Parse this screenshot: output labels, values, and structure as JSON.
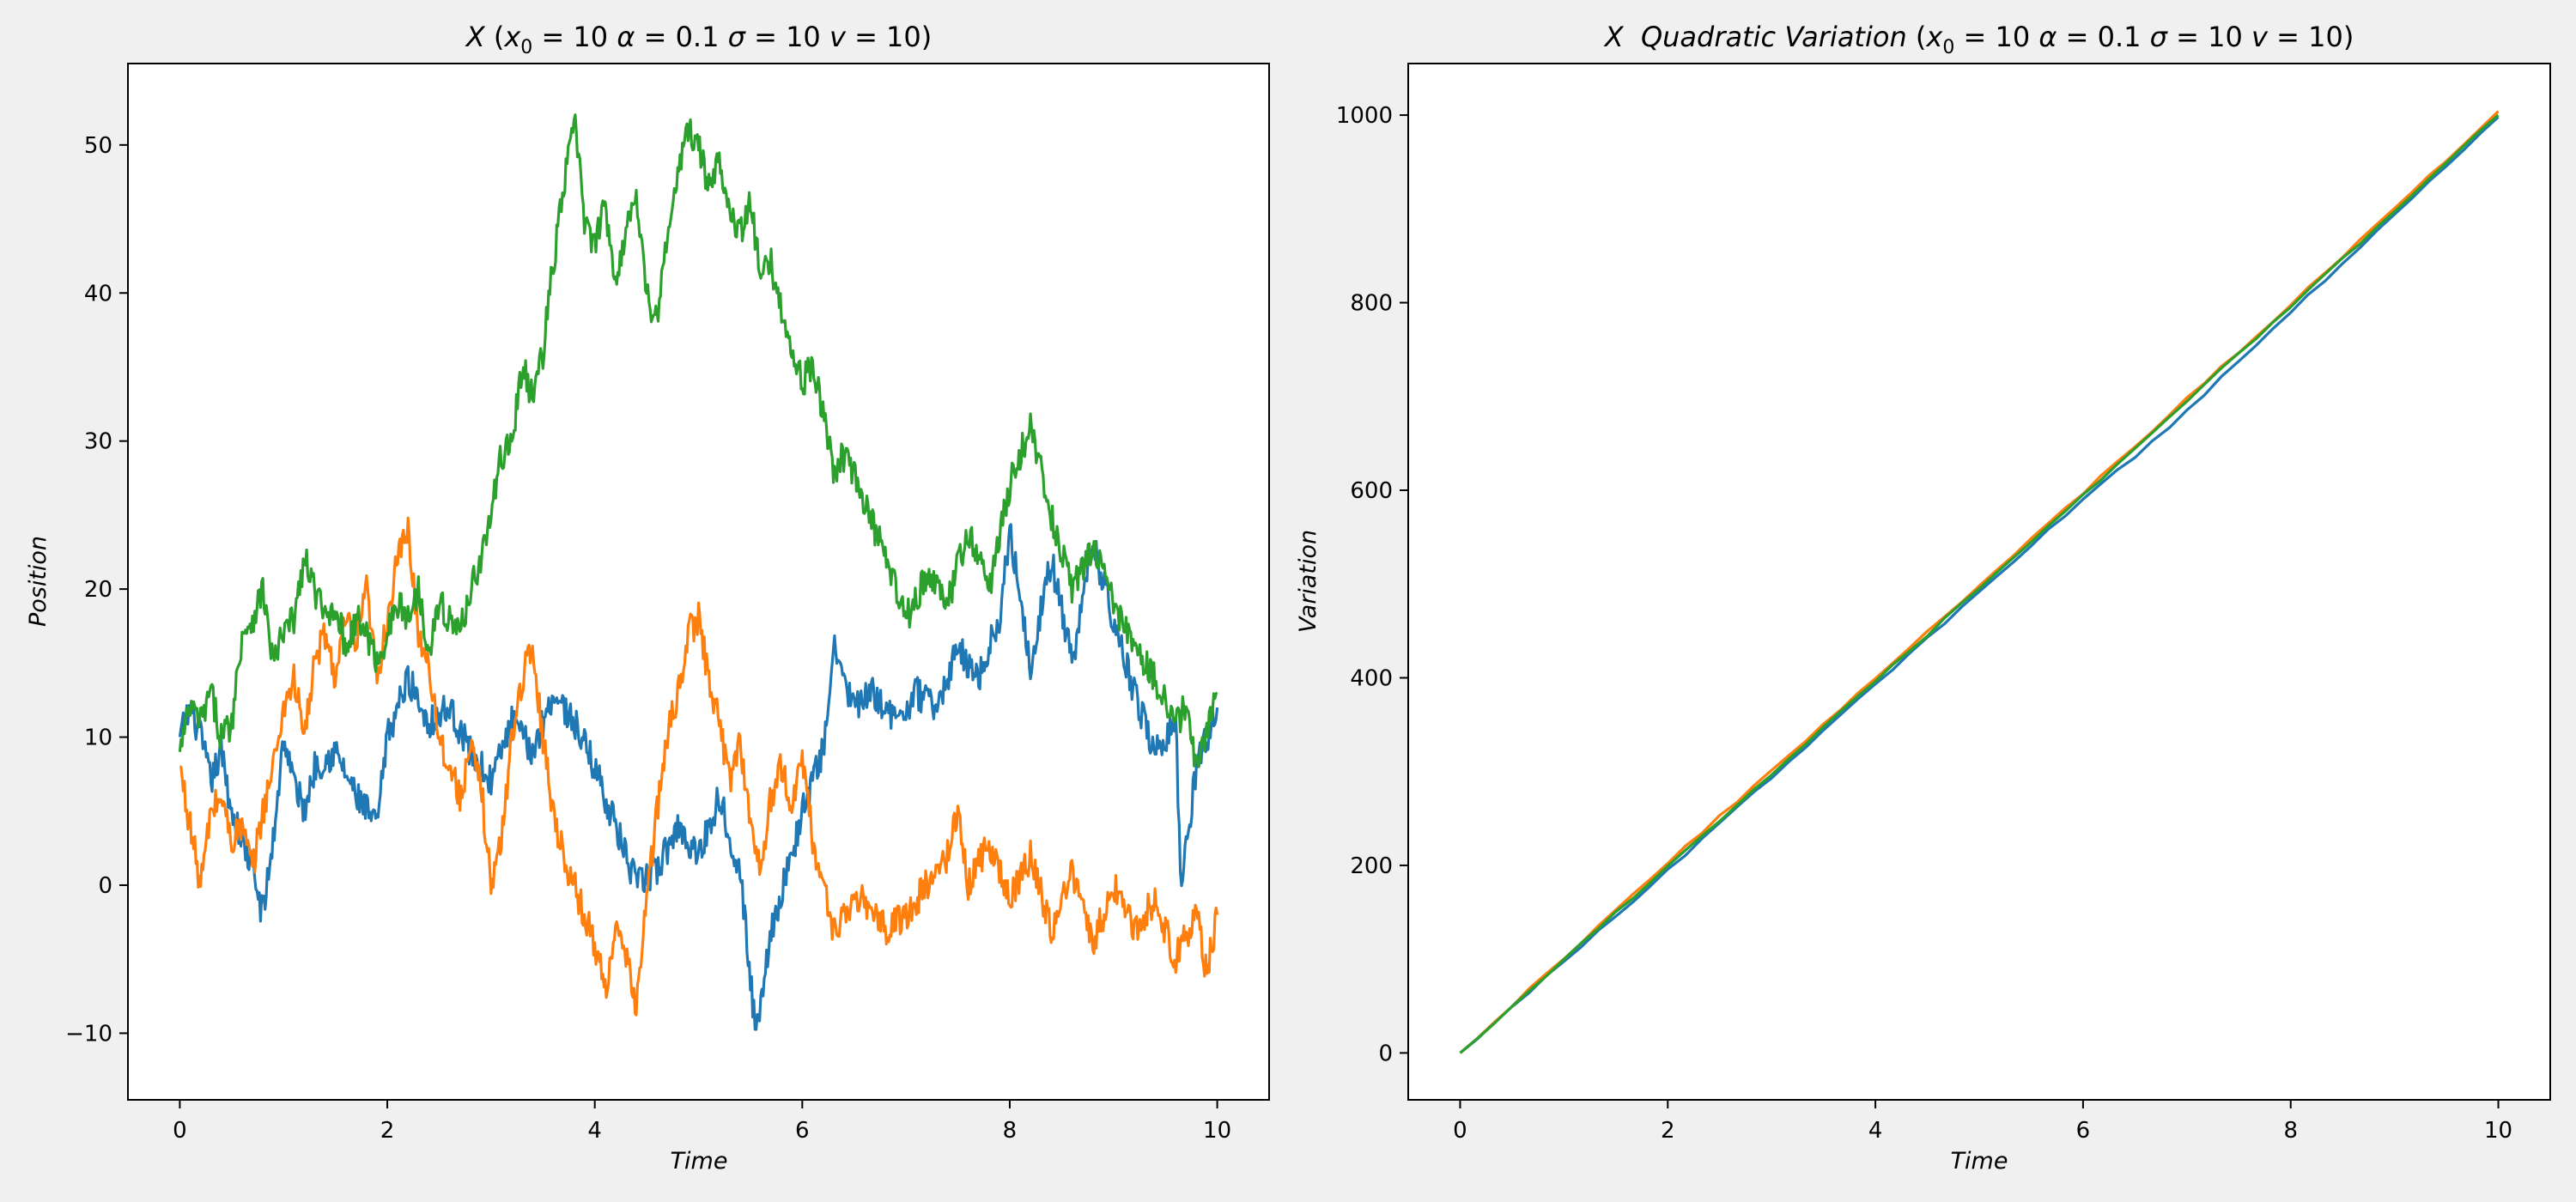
{
  "colors": {
    "background": "#f0f0f0",
    "plot_background": "#ffffff",
    "series_1": "#1f77b4",
    "series_2": "#ff7f0e",
    "series_3": "#2ca02c"
  },
  "chart_data": [
    {
      "type": "line",
      "title_parts": {
        "var": "X",
        "x0_sym": "x",
        "x0_sub": "0",
        "x0_val": " = 10  ",
        "alpha_sym": "α",
        "alpha_val": " = 0.1  ",
        "sigma_sym": "σ",
        "sigma_val": " = 10  ",
        "v_sym": "v",
        "v_val": " = 10)"
      },
      "xlabel": "Time",
      "ylabel": "Position",
      "xlim": [
        -0.5,
        10.5
      ],
      "ylim": [
        -14.5,
        55.5
      ],
      "xticks": [
        0,
        2,
        4,
        6,
        8,
        10
      ],
      "yticks": [
        -10,
        0,
        10,
        20,
        30,
        40,
        50
      ],
      "ytick_labels": [
        "−10",
        "0",
        "10",
        "20",
        "30",
        "40",
        "50"
      ],
      "grid": false,
      "series": [
        {
          "color": "#1f77b4",
          "x": [
            0,
            0.1,
            0.2,
            0.3,
            0.4,
            0.5,
            0.6,
            0.7,
            0.8,
            0.9,
            1.0,
            1.1,
            1.2,
            1.3,
            1.5,
            1.7,
            1.9,
            2.0,
            2.2,
            2.4,
            2.6,
            2.8,
            3.0,
            3.2,
            3.4,
            3.6,
            3.8,
            4.0,
            4.2,
            4.4,
            4.6,
            4.8,
            5.0,
            5.2,
            5.4,
            5.55,
            5.7,
            5.9,
            6.0,
            6.2,
            6.3,
            6.5,
            6.7,
            6.9,
            7.1,
            7.3,
            7.5,
            7.7,
            7.9,
            8.0,
            8.2,
            8.4,
            8.6,
            8.8,
            9.0,
            9.2,
            9.4,
            9.6,
            9.65,
            9.8,
            10.0
          ],
          "y": [
            10,
            12,
            10,
            7,
            9,
            5,
            3,
            1,
            -2,
            3,
            10,
            7,
            5,
            8,
            9,
            6,
            4,
            10,
            14,
            11,
            12,
            9,
            7,
            11,
            9,
            13,
            11,
            8,
            4,
            0,
            1,
            4,
            2,
            6,
            1,
            -10,
            -3,
            2,
            5,
            9,
            16,
            12,
            13,
            11,
            13,
            12,
            16,
            14,
            18,
            24,
            15,
            22,
            15,
            23,
            18,
            13,
            9,
            11,
            0,
            8,
            12
          ]
        },
        {
          "color": "#ff7f0e",
          "x": [
            0,
            0.1,
            0.2,
            0.3,
            0.4,
            0.5,
            0.6,
            0.7,
            0.8,
            0.9,
            1.0,
            1.1,
            1.2,
            1.3,
            1.4,
            1.5,
            1.6,
            1.7,
            1.8,
            1.9,
            2.0,
            2.1,
            2.2,
            2.3,
            2.4,
            2.5,
            2.6,
            2.7,
            2.8,
            2.9,
            3.0,
            3.1,
            3.2,
            3.3,
            3.4,
            3.5,
            3.6,
            3.7,
            3.8,
            3.9,
            4.0,
            4.1,
            4.2,
            4.3,
            4.4,
            4.5,
            4.6,
            4.7,
            4.8,
            4.9,
            5.0,
            5.1,
            5.2,
            5.3,
            5.4,
            5.5,
            5.6,
            5.7,
            5.8,
            5.9,
            6.0,
            6.1,
            6.2,
            6.3,
            6.4,
            6.6,
            6.8,
            7.0,
            7.2,
            7.4,
            7.5,
            7.6,
            7.8,
            8.0,
            8.2,
            8.4,
            8.6,
            8.8,
            9.0,
            9.2,
            9.4,
            9.6,
            9.8,
            9.9,
            10.0
          ],
          "y": [
            8,
            4,
            0,
            5,
            6,
            3,
            4,
            1,
            5,
            8,
            12,
            14,
            10,
            15,
            17,
            14,
            18,
            16,
            20,
            14,
            18,
            22,
            24,
            17,
            15,
            10,
            8,
            6,
            9,
            7,
            0,
            3,
            10,
            14,
            16,
            10,
            5,
            2,
            0,
            -2,
            -4,
            -7,
            -3,
            -5,
            -8,
            -1,
            5,
            10,
            13,
            17,
            18,
            14,
            11,
            7,
            10,
            4,
            1,
            6,
            8,
            5,
            9,
            3,
            0,
            -3,
            -2,
            -1,
            -3,
            -2,
            0,
            2,
            5,
            0,
            3,
            -1,
            2,
            -3,
            1,
            -4,
            0,
            -3,
            -1,
            -5,
            -2,
            -6,
            -2
          ]
        },
        {
          "color": "#2ca02c",
          "x": [
            0,
            0.1,
            0.2,
            0.3,
            0.4,
            0.5,
            0.6,
            0.7,
            0.8,
            0.9,
            1.0,
            1.1,
            1.2,
            1.3,
            1.4,
            1.5,
            1.6,
            1.7,
            1.8,
            1.9,
            2.0,
            2.1,
            2.2,
            2.3,
            2.4,
            2.5,
            2.6,
            2.7,
            2.8,
            2.9,
            3.0,
            3.1,
            3.2,
            3.3,
            3.4,
            3.5,
            3.6,
            3.7,
            3.8,
            3.9,
            4.0,
            4.1,
            4.2,
            4.3,
            4.4,
            4.5,
            4.6,
            4.7,
            4.8,
            4.9,
            5.0,
            5.1,
            5.2,
            5.3,
            5.4,
            5.5,
            5.6,
            5.7,
            5.8,
            5.9,
            6.0,
            6.1,
            6.2,
            6.3,
            6.4,
            6.6,
            6.8,
            7.0,
            7.2,
            7.4,
            7.6,
            7.8,
            8.0,
            8.2,
            8.4,
            8.6,
            8.8,
            9.0,
            9.2,
            9.4,
            9.6,
            9.7,
            9.8,
            10.0
          ],
          "y": [
            9,
            12,
            11,
            13,
            10,
            11,
            17,
            18,
            20,
            15,
            17,
            18,
            22,
            20,
            18,
            19,
            16,
            18,
            17,
            15,
            17,
            19,
            18,
            20,
            16,
            19,
            18,
            17,
            20,
            22,
            25,
            29,
            30,
            35,
            33,
            36,
            42,
            47,
            52,
            45,
            43,
            46,
            41,
            44,
            47,
            40,
            38,
            44,
            48,
            51,
            50,
            47,
            49,
            46,
            44,
            46,
            41,
            42,
            39,
            36,
            34,
            35,
            32,
            28,
            29,
            26,
            22,
            18,
            21,
            19,
            24,
            20,
            27,
            31,
            25,
            20,
            23,
            19,
            16,
            14,
            11,
            12,
            8,
            13
          ]
        }
      ]
    },
    {
      "type": "line",
      "title_parts": {
        "var": "X",
        "label": "  Quadratic Variation",
        "x0_sym": "x",
        "x0_sub": "0",
        "x0_val": " = 10  ",
        "alpha_sym": "α",
        "alpha_val": " = 0.1  ",
        "sigma_sym": "σ",
        "sigma_val": " = 10  ",
        "v_sym": "v",
        "v_val": " = 10)"
      },
      "xlabel": "Time",
      "ylabel": "Variation",
      "xlim": [
        -0.5,
        10.5
      ],
      "ylim": [
        -50,
        1055
      ],
      "xticks": [
        0,
        2,
        4,
        6,
        8,
        10
      ],
      "yticks": [
        0,
        200,
        400,
        600,
        800,
        1000
      ],
      "ytick_labels": [
        "0",
        "200",
        "400",
        "600",
        "800",
        "1000"
      ],
      "grid": false,
      "series": [
        {
          "color": "#1f77b4",
          "x": [
            0,
            2,
            4,
            6,
            6.8,
            8,
            10
          ],
          "y": [
            0,
            195,
            393,
            590,
            664,
            790,
            998
          ]
        },
        {
          "color": "#ff7f0e",
          "x": [
            0,
            2,
            4,
            6,
            8,
            10
          ],
          "y": [
            0,
            203,
            399,
            597,
            798,
            1004
          ]
        },
        {
          "color": "#2ca02c",
          "x": [
            0,
            2,
            4,
            6,
            8,
            10
          ],
          "y": [
            0,
            199,
            396,
            595,
            796,
            1000
          ]
        }
      ]
    }
  ]
}
